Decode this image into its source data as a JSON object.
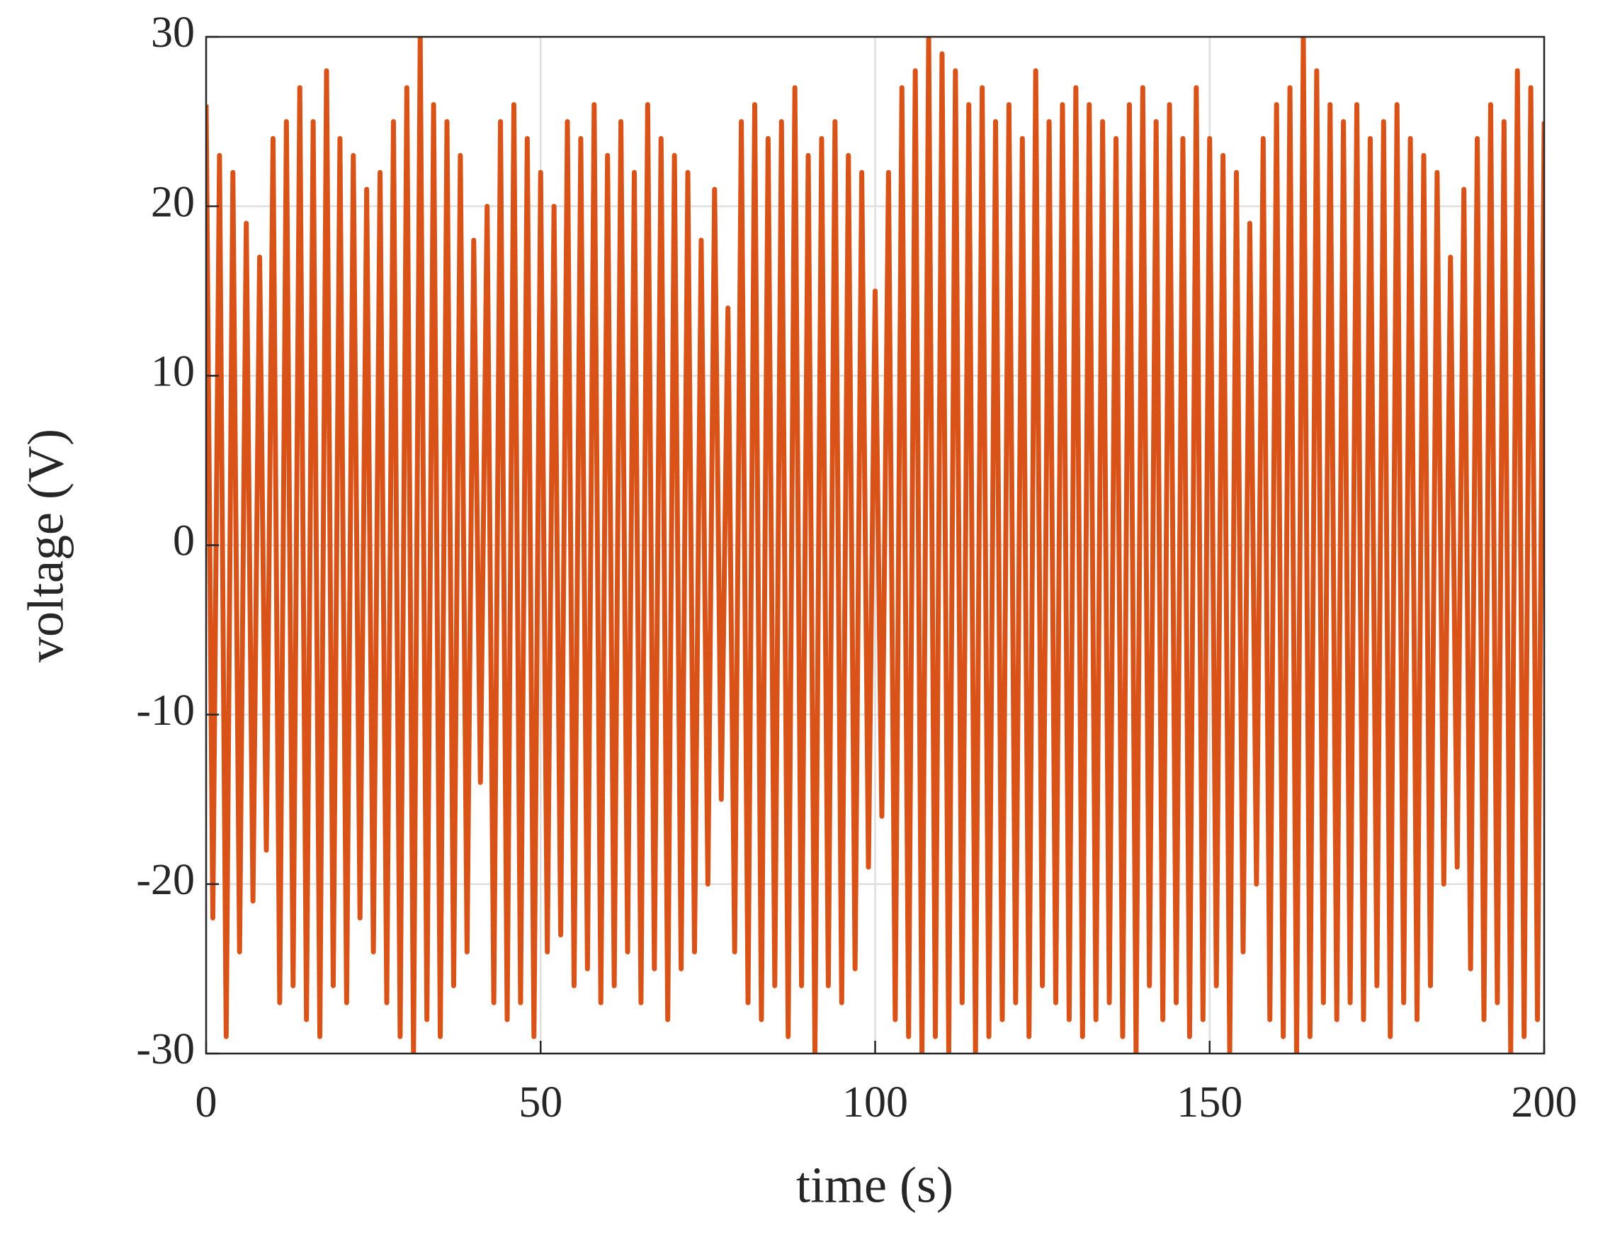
{
  "chart_data": {
    "type": "line",
    "x_label": "time (s)",
    "y_label": "voltage (V)",
    "x": [
      0,
      1,
      2,
      3,
      4,
      5,
      6,
      7,
      8,
      9,
      10,
      11,
      12,
      13,
      14,
      15,
      16,
      17,
      18,
      19,
      20,
      21,
      22,
      23,
      24,
      25,
      26,
      27,
      28,
      29,
      30,
      31,
      32,
      33,
      34,
      35,
      36,
      37,
      38,
      39,
      40,
      41,
      42,
      43,
      44,
      45,
      46,
      47,
      48,
      49,
      50,
      51,
      52,
      53,
      54,
      55,
      56,
      57,
      58,
      59,
      60,
      61,
      62,
      63,
      64,
      65,
      66,
      67,
      68,
      69,
      70,
      71,
      72,
      73,
      74,
      75,
      76,
      77,
      78,
      79,
      80,
      81,
      82,
      83,
      84,
      85,
      86,
      87,
      88,
      89,
      90,
      91,
      92,
      93,
      94,
      95,
      96,
      97,
      98,
      99,
      100,
      101,
      102,
      103,
      104,
      105,
      106,
      107,
      108,
      109,
      110,
      111,
      112,
      113,
      114,
      115,
      116,
      117,
      118,
      119,
      120,
      121,
      122,
      123,
      124,
      125,
      126,
      127,
      128,
      129,
      130,
      131,
      132,
      133,
      134,
      135,
      136,
      137,
      138,
      139,
      140,
      141,
      142,
      143,
      144,
      145,
      146,
      147,
      148,
      149,
      150,
      151,
      152,
      153,
      154,
      155,
      156,
      157,
      158,
      159,
      160,
      161,
      162,
      163,
      164,
      165,
      166,
      167,
      168,
      169,
      170,
      171,
      172,
      173,
      174,
      175,
      176,
      177,
      178,
      179,
      180,
      181,
      182,
      183,
      184,
      185,
      186,
      187,
      188,
      189,
      190,
      191,
      192,
      193,
      194,
      195,
      196,
      197,
      198,
      199,
      200
    ],
    "values": [
      26,
      -22,
      23,
      -29,
      22,
      -24,
      19,
      -21,
      17,
      -18,
      24,
      -27,
      25,
      -26,
      27,
      -28,
      25,
      -29,
      28,
      -26,
      24,
      -27,
      23,
      -22,
      21,
      -24,
      22,
      -27,
      25,
      -29,
      27,
      -30,
      30,
      -28,
      26,
      -29,
      25,
      -26,
      23,
      -24,
      18,
      -14,
      20,
      -27,
      25,
      -28,
      26,
      -27,
      24,
      -29,
      22,
      -24,
      20,
      -23,
      25,
      -26,
      24,
      -25,
      26,
      -27,
      23,
      -26,
      25,
      -24,
      22,
      -27,
      26,
      -25,
      24,
      -28,
      23,
      -25,
      22,
      -24,
      18,
      -20,
      21,
      -15,
      14,
      -24,
      25,
      -27,
      26,
      -28,
      24,
      -26,
      25,
      -29,
      27,
      -26,
      23,
      -30,
      24,
      -26,
      25,
      -27,
      23,
      -25,
      22,
      -19,
      15,
      -16,
      22,
      -28,
      27,
      -29,
      28,
      -30,
      30,
      -29,
      29,
      -30,
      28,
      -27,
      26,
      -30,
      27,
      -29,
      25,
      -28,
      26,
      -27,
      24,
      -29,
      28,
      -26,
      25,
      -27,
      26,
      -28,
      27,
      -29,
      26,
      -28,
      25,
      -27,
      24,
      -29,
      26,
      -30,
      27,
      -26,
      25,
      -28,
      26,
      -27,
      24,
      -29,
      27,
      -28,
      24,
      -26,
      23,
      -30,
      22,
      -24,
      19,
      -20,
      24,
      -28,
      26,
      -29,
      27,
      -30,
      30,
      -29,
      28,
      -27,
      26,
      -28,
      25,
      -27,
      26,
      -28,
      24,
      -26,
      25,
      -29,
      26,
      -27,
      24,
      -28,
      23,
      -26,
      22,
      -20,
      17,
      -19,
      21,
      -25,
      24,
      -28,
      26,
      -27,
      25,
      -30,
      28,
      -29,
      27,
      -28,
      25
    ],
    "color": "#d95319",
    "xlim": [
      0,
      200
    ],
    "xticks": [
      0,
      50,
      100,
      150,
      200
    ],
    "ylim": [
      -30,
      30
    ],
    "yticks": [
      -30,
      -20,
      -10,
      0,
      10,
      20,
      30
    ],
    "grid": true
  }
}
